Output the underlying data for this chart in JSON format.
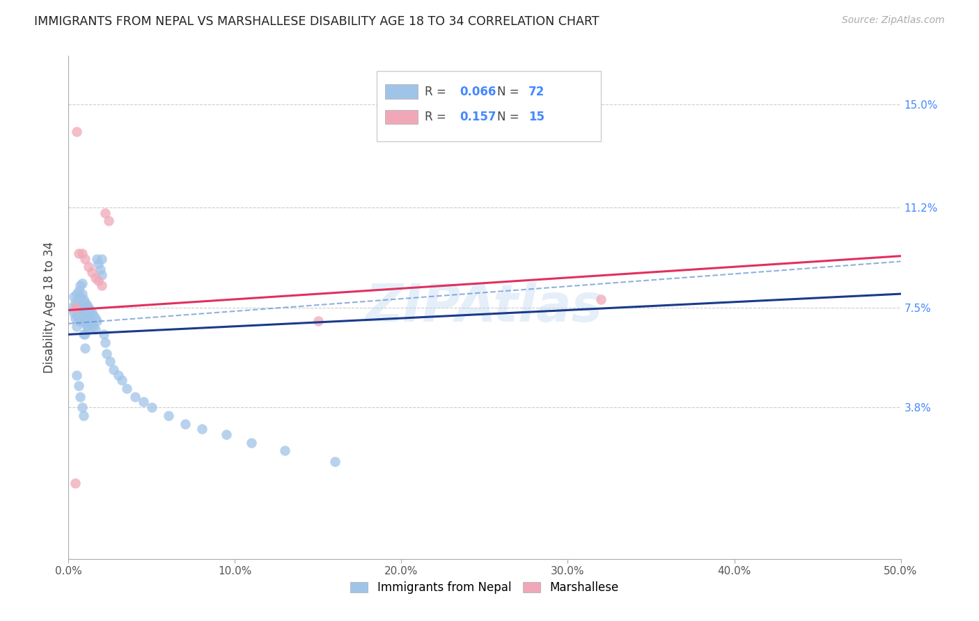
{
  "title": "IMMIGRANTS FROM NEPAL VS MARSHALLESE DISABILITY AGE 18 TO 34 CORRELATION CHART",
  "source": "Source: ZipAtlas.com",
  "ylabel": "Disability Age 18 to 34",
  "xlim": [
    0.0,
    0.5
  ],
  "ylim": [
    -0.018,
    0.168
  ],
  "yticks": [
    0.038,
    0.075,
    0.112,
    0.15
  ],
  "ytick_labels": [
    "3.8%",
    "7.5%",
    "11.2%",
    "15.0%"
  ],
  "xticks": [
    0.0,
    0.1,
    0.2,
    0.3,
    0.4,
    0.5
  ],
  "xtick_labels": [
    "0.0%",
    "10.0%",
    "20.0%",
    "30.0%",
    "40.0%",
    "50.0%"
  ],
  "legend_R1": "0.066",
  "legend_N1": "72",
  "legend_R2": "0.157",
  "legend_N2": "15",
  "blue_color": "#a0c4e8",
  "pink_color": "#f0a8b8",
  "blue_line_color": "#1a3a8a",
  "pink_line_color": "#e03060",
  "blue_dash_color": "#6090d0",
  "watermark": "ZIPAtlas",
  "nepal_x": [
    0.002,
    0.003,
    0.003,
    0.004,
    0.004,
    0.005,
    0.005,
    0.005,
    0.005,
    0.006,
    0.006,
    0.006,
    0.007,
    0.007,
    0.007,
    0.007,
    0.008,
    0.008,
    0.008,
    0.008,
    0.009,
    0.009,
    0.009,
    0.009,
    0.01,
    0.01,
    0.01,
    0.01,
    0.01,
    0.011,
    0.011,
    0.011,
    0.012,
    0.012,
    0.012,
    0.013,
    0.013,
    0.014,
    0.014,
    0.015,
    0.015,
    0.016,
    0.016,
    0.017,
    0.017,
    0.018,
    0.019,
    0.02,
    0.02,
    0.021,
    0.022,
    0.023,
    0.025,
    0.027,
    0.03,
    0.032,
    0.035,
    0.04,
    0.045,
    0.05,
    0.06,
    0.07,
    0.08,
    0.095,
    0.11,
    0.13,
    0.16,
    0.005,
    0.006,
    0.007,
    0.008,
    0.009
  ],
  "nepal_y": [
    0.075,
    0.079,
    0.073,
    0.077,
    0.071,
    0.08,
    0.076,
    0.072,
    0.068,
    0.081,
    0.075,
    0.07,
    0.083,
    0.079,
    0.075,
    0.07,
    0.084,
    0.08,
    0.076,
    0.072,
    0.078,
    0.074,
    0.07,
    0.065,
    0.077,
    0.073,
    0.069,
    0.065,
    0.06,
    0.076,
    0.072,
    0.068,
    0.075,
    0.071,
    0.067,
    0.074,
    0.07,
    0.073,
    0.069,
    0.072,
    0.068,
    0.071,
    0.067,
    0.07,
    0.093,
    0.091,
    0.089,
    0.087,
    0.093,
    0.065,
    0.062,
    0.058,
    0.055,
    0.052,
    0.05,
    0.048,
    0.045,
    0.042,
    0.04,
    0.038,
    0.035,
    0.032,
    0.03,
    0.028,
    0.025,
    0.022,
    0.018,
    0.05,
    0.046,
    0.042,
    0.038,
    0.035
  ],
  "marsh_x": [
    0.004,
    0.005,
    0.006,
    0.008,
    0.01,
    0.012,
    0.014,
    0.016,
    0.018,
    0.02,
    0.022,
    0.024,
    0.32,
    0.004,
    0.15
  ],
  "marsh_y": [
    0.075,
    0.14,
    0.095,
    0.095,
    0.093,
    0.09,
    0.088,
    0.086,
    0.085,
    0.083,
    0.11,
    0.107,
    0.078,
    0.01,
    0.07
  ],
  "nepal_line_x0": 0.0,
  "nepal_line_x1": 0.5,
  "nepal_line_y0": 0.065,
  "nepal_line_y1": 0.08,
  "marsh_line_y0": 0.074,
  "marsh_line_y1": 0.094,
  "dash_line_y0": 0.069,
  "dash_line_y1": 0.092
}
